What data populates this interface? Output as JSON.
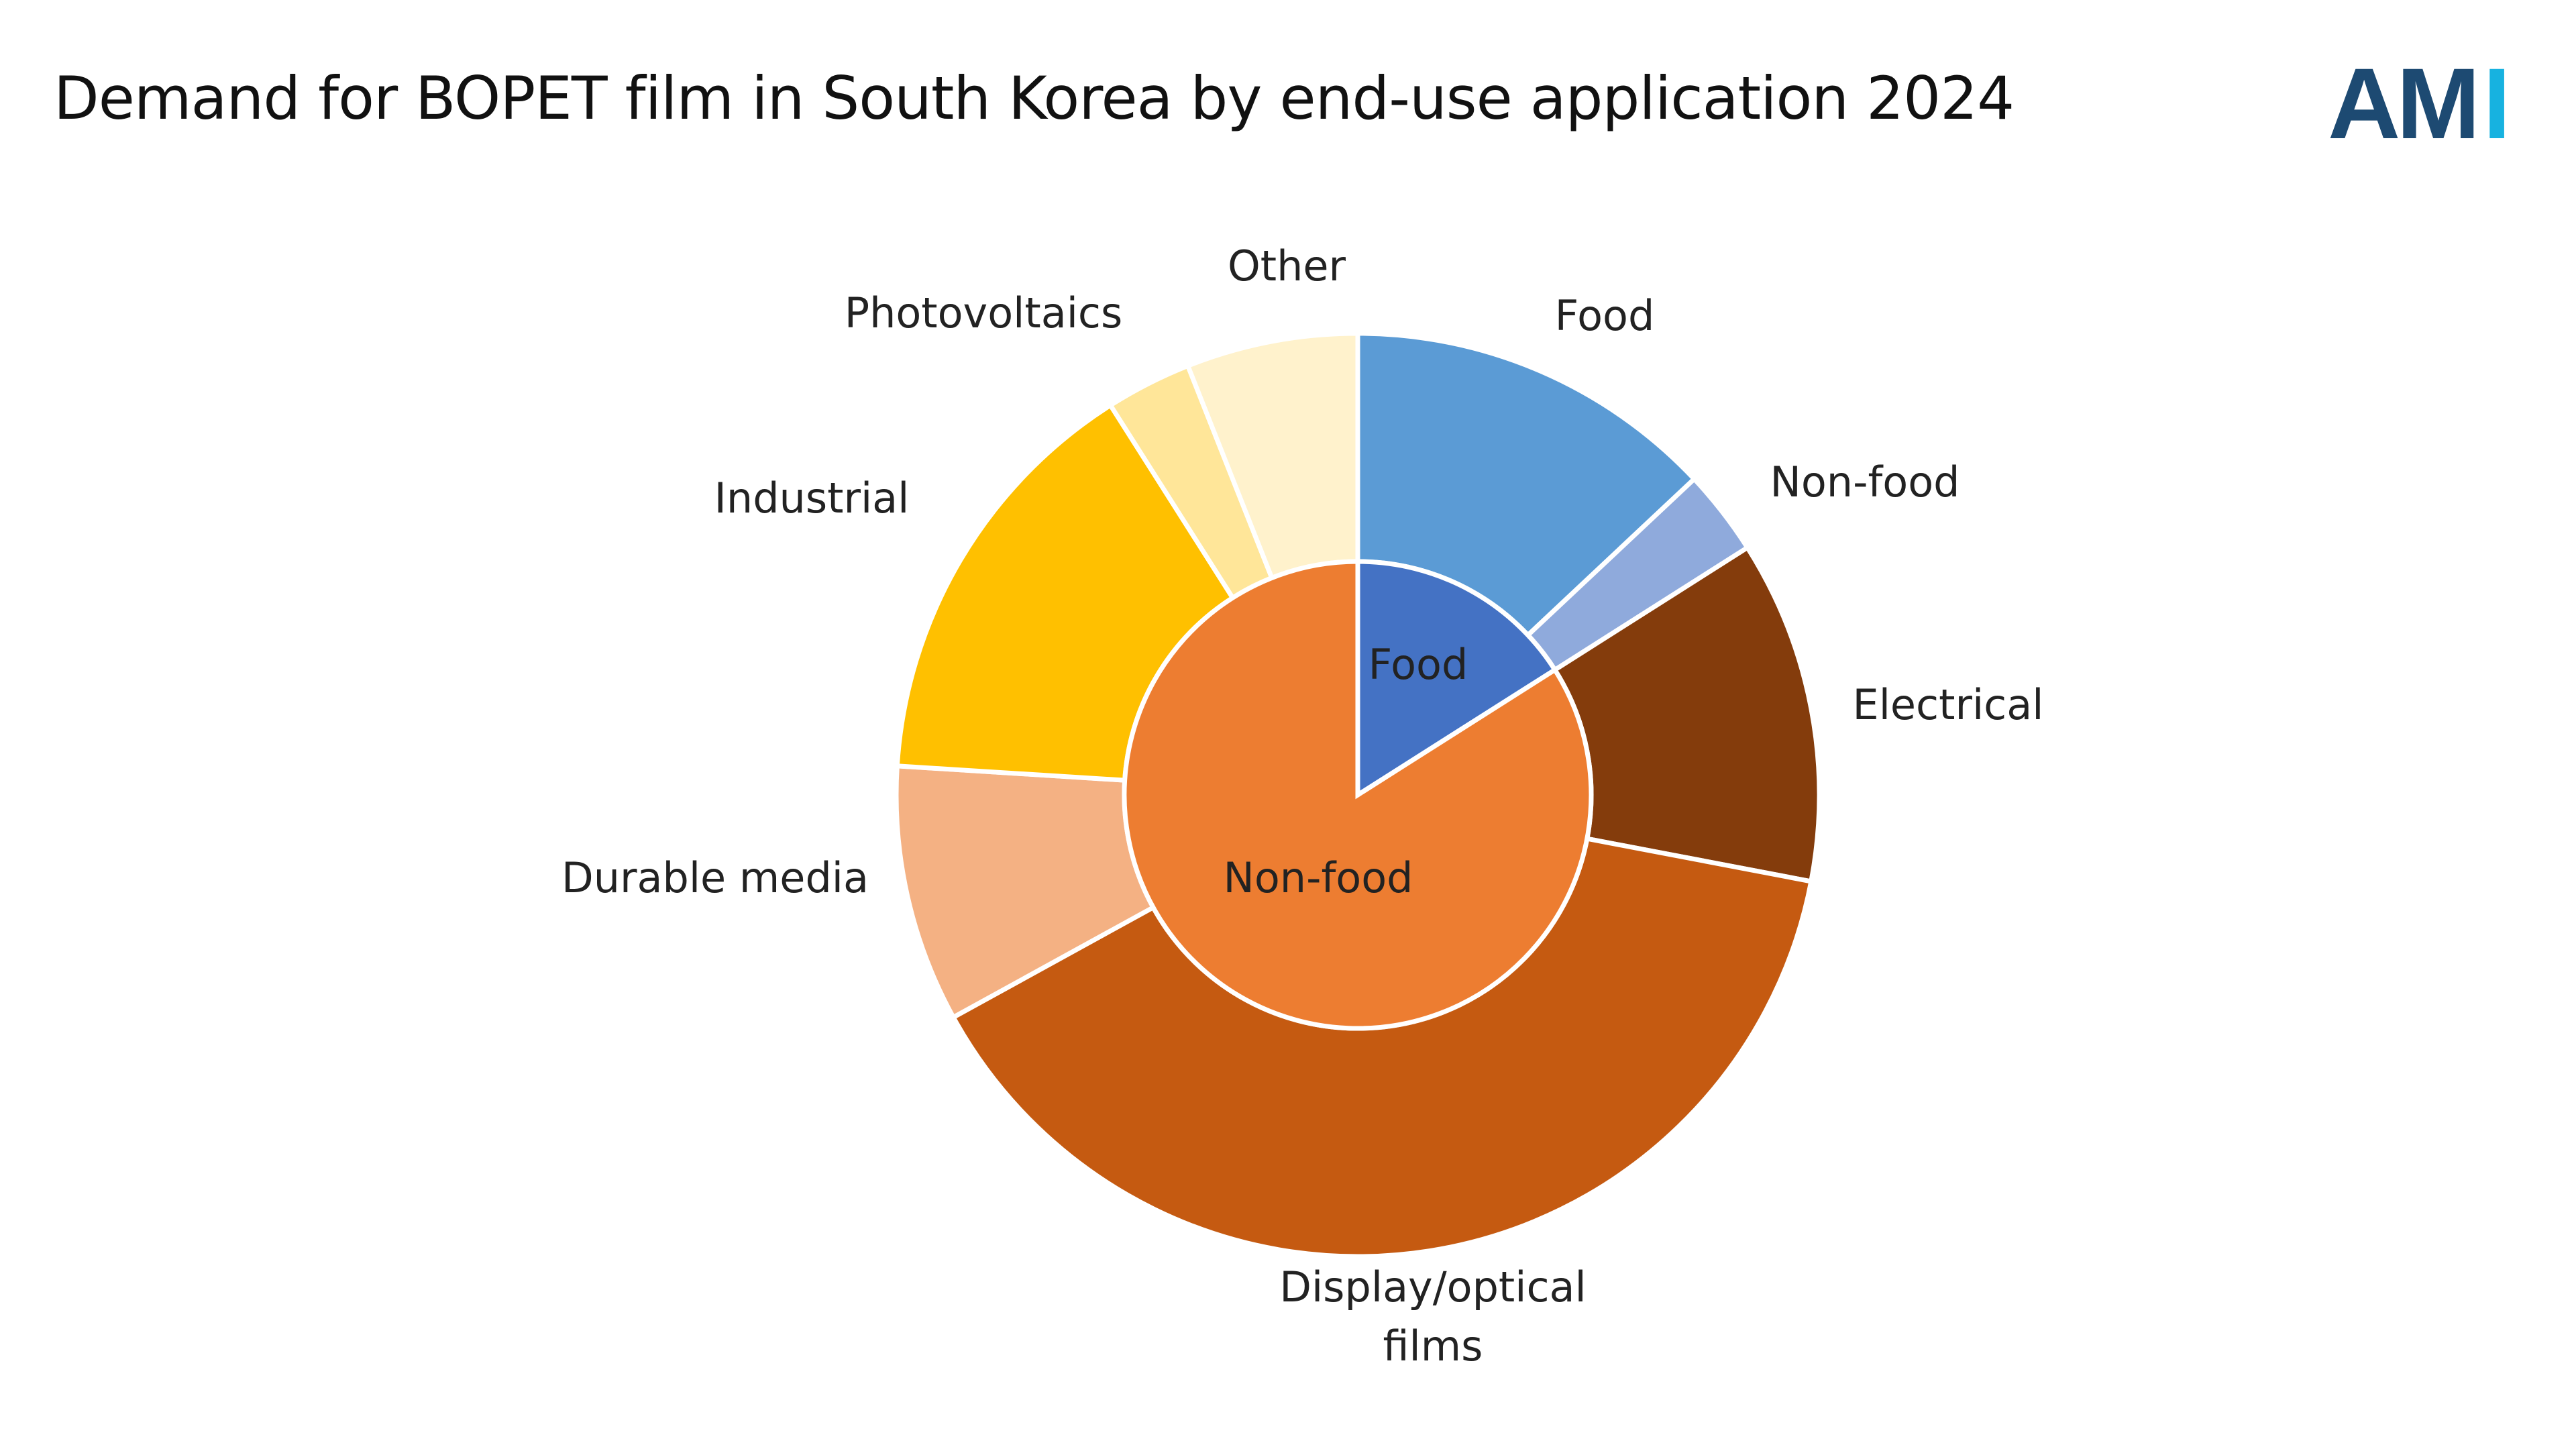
{
  "title": "Demand for BOPET film in South Korea by end-use application 2024",
  "logo": {
    "text_dark": "AM",
    "text_light": "I",
    "color_dark": "#1D4A72",
    "color_light": "#17B2E0"
  },
  "chart_data": {
    "type": "pie",
    "subtype": "sunburst-donut",
    "title": "Demand for BOPET film in South Korea by end-use application 2024",
    "units": "percent share (estimated)",
    "inner_ring": [
      {
        "label": "Food",
        "value": 16,
        "color": "#4472C4"
      },
      {
        "label": "Non-food",
        "value": 84,
        "color": "#ED7D31"
      }
    ],
    "outer_ring": [
      {
        "label": "Food",
        "value": 13,
        "color": "#5B9BD5",
        "parent": "Food"
      },
      {
        "label": "Non-food",
        "value": 3,
        "color": "#8FAADC",
        "parent": "Food"
      },
      {
        "label": "Electrical",
        "value": 12,
        "color": "#843C0C",
        "parent": "Non-food"
      },
      {
        "label": "Display/optical films",
        "value": 39,
        "color": "#C55A11",
        "parent": "Non-food"
      },
      {
        "label": "Durable media",
        "value": 9,
        "color": "#F4B183",
        "parent": "Non-food"
      },
      {
        "label": "Industrial",
        "value": 15,
        "color": "#FFC000",
        "parent": "Non-food"
      },
      {
        "label": "Photovoltaics",
        "value": 3,
        "color": "#FFE699",
        "parent": "Non-food"
      },
      {
        "label": "Other",
        "value": 6,
        "color": "#FFF2CC",
        "parent": "Non-food"
      }
    ],
    "legend": "none"
  }
}
